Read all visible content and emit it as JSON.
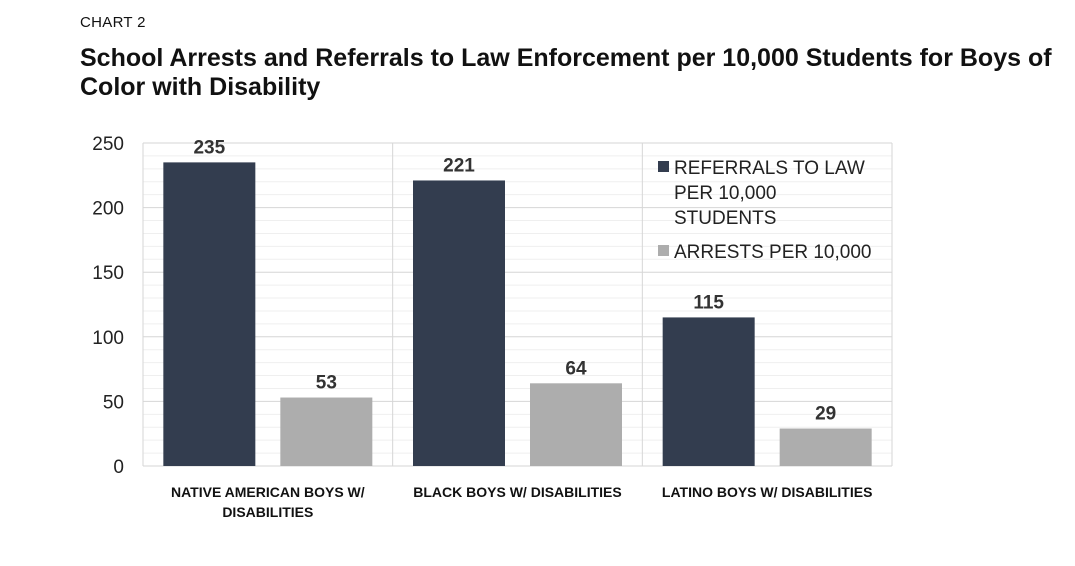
{
  "header": {
    "kicker": "CHART 2",
    "title": "School Arrests and Referrals to Law Enforcement per 10,000 Students for Boys of Color with Disability"
  },
  "chart_data": {
    "type": "bar",
    "categories": [
      [
        "NATIVE AMERICAN BOYS W/",
        "DISABILITIES"
      ],
      [
        "BLACK BOYS W/ DISABILITIES"
      ],
      [
        "LATINO BOYS W/ DISABILITIES"
      ]
    ],
    "series": [
      {
        "name": "REFERRALS TO LAW PER 10,000 STUDENTS",
        "legend_lines": [
          "REFERRALS TO LAW",
          "PER 10,000",
          "STUDENTS"
        ],
        "color": "#333d4f",
        "values": [
          235,
          221,
          115
        ]
      },
      {
        "name": "ARRESTS PER 10,000",
        "legend_lines": [
          "ARRESTS PER 10,000"
        ],
        "color": "#adadad",
        "values": [
          53,
          64,
          29
        ]
      }
    ],
    "ylim": [
      0,
      250
    ],
    "yticks": [
      0,
      50,
      100,
      150,
      200,
      250
    ],
    "minor_grid_step": 10,
    "grid": true,
    "legend_position": "top-right",
    "xlabel": "",
    "ylabel": ""
  }
}
